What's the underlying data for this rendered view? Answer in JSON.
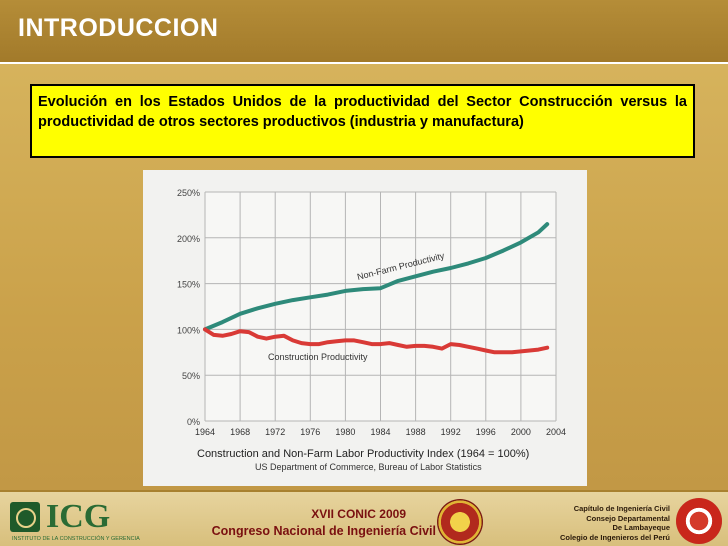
{
  "header": {
    "title": "INTRODUCCION"
  },
  "callout": {
    "text": "Evolución en los Estados Unidos de la productividad del Sector Construcción versus la productividad de otros sectores productivos (industria y manufactura)"
  },
  "chart_data": {
    "type": "line",
    "title": "Construction and Non-Farm Labor Productivity Index  (1964 = 100%)",
    "subtitle": "US Department of Commerce, Bureau of Labor Statistics",
    "x_ticks": [
      "1964",
      "1968",
      "1972",
      "1976",
      "1980",
      "1984",
      "1988",
      "1992",
      "1996",
      "2000",
      "2004"
    ],
    "y_ticks": [
      "0%",
      "50%",
      "100%",
      "150%",
      "200%",
      "250%"
    ],
    "xlim": [
      1964,
      2004
    ],
    "ylim": [
      0,
      250
    ],
    "grid": true,
    "series": [
      {
        "name": "Non-Farm Productivity",
        "color": "#2e8a7a",
        "x": [
          1964,
          1966,
          1968,
          1970,
          1972,
          1974,
          1976,
          1978,
          1980,
          1982,
          1984,
          1986,
          1988,
          1990,
          1992,
          1994,
          1996,
          1998,
          2000,
          2002,
          2003
        ],
        "y": [
          100,
          108,
          117,
          123,
          128,
          132,
          135,
          138,
          142,
          144,
          145,
          153,
          158,
          163,
          167,
          172,
          178,
          186,
          195,
          206,
          215
        ]
      },
      {
        "name": "Construction Productivity",
        "color": "#d93a36",
        "x": [
          1964,
          1965,
          1966,
          1967,
          1968,
          1969,
          1970,
          1971,
          1972,
          1973,
          1974,
          1975,
          1976,
          1977,
          1978,
          1979,
          1980,
          1981,
          1982,
          1983,
          1984,
          1985,
          1986,
          1987,
          1988,
          1989,
          1990,
          1991,
          1992,
          1993,
          1994,
          1995,
          1996,
          1997,
          1998,
          1999,
          2000,
          2001,
          2002,
          2003
        ],
        "y": [
          100,
          94,
          93,
          95,
          98,
          97,
          92,
          90,
          92,
          93,
          88,
          85,
          84,
          84,
          86,
          87,
          88,
          88,
          86,
          84,
          84,
          85,
          83,
          81,
          82,
          82,
          81,
          79,
          84,
          83,
          81,
          79,
          77,
          75,
          75,
          75,
          76,
          77,
          78,
          80
        ]
      }
    ]
  },
  "footer": {
    "logo_text": "ICG",
    "logo_sub": "INSTITUTO DE LA CONSTRUCCIÓN Y GERENCIA",
    "conic": "XVII  CONIC 2009",
    "congreso": "Congreso Nacional de Ingeniería Civil",
    "cap_lines": [
      "Capítulo de Ingeniería Civil",
      "Consejo Departamental",
      "De Lambayeque",
      "Colegio de Ingenieros del Perú"
    ]
  }
}
